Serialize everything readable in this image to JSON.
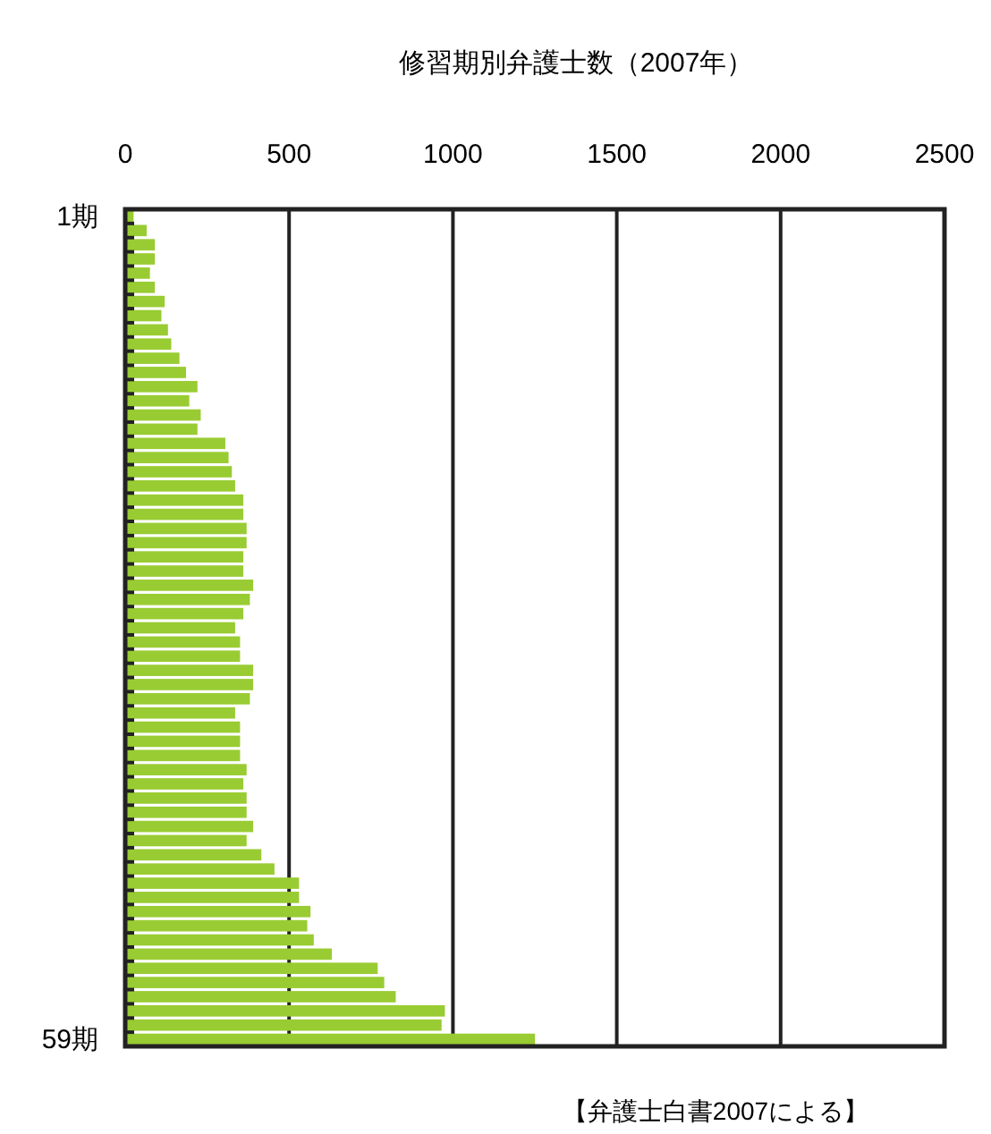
{
  "chart_data": {
    "type": "bar",
    "orientation": "horizontal",
    "title": "修習期別弁護士数（2007年）",
    "categories": [
      "1期",
      null,
      null,
      null,
      null,
      null,
      null,
      null,
      null,
      null,
      null,
      null,
      null,
      null,
      null,
      null,
      null,
      null,
      null,
      null,
      null,
      null,
      null,
      null,
      null,
      null,
      null,
      null,
      null,
      null,
      null,
      null,
      null,
      null,
      null,
      null,
      null,
      null,
      null,
      null,
      null,
      null,
      null,
      null,
      null,
      null,
      null,
      null,
      null,
      null,
      null,
      null,
      null,
      null,
      null,
      null,
      null,
      null,
      "59期"
    ],
    "values": [
      20,
      60,
      85,
      85,
      70,
      85,
      115,
      105,
      125,
      135,
      160,
      180,
      215,
      190,
      225,
      215,
      300,
      310,
      320,
      330,
      355,
      355,
      365,
      365,
      355,
      355,
      385,
      375,
      355,
      330,
      345,
      345,
      385,
      385,
      375,
      330,
      345,
      345,
      345,
      365,
      355,
      365,
      365,
      385,
      365,
      410,
      450,
      525,
      525,
      560,
      550,
      570,
      625,
      765,
      785,
      820,
      970,
      960,
      1245
    ],
    "color": "#99cc33",
    "xlim": [
      0,
      2500
    ],
    "xticks": [
      0,
      500,
      1000,
      1500,
      2000,
      2500
    ],
    "grid": "x",
    "annotations": [
      "【弁護士白書2007による】"
    ]
  }
}
